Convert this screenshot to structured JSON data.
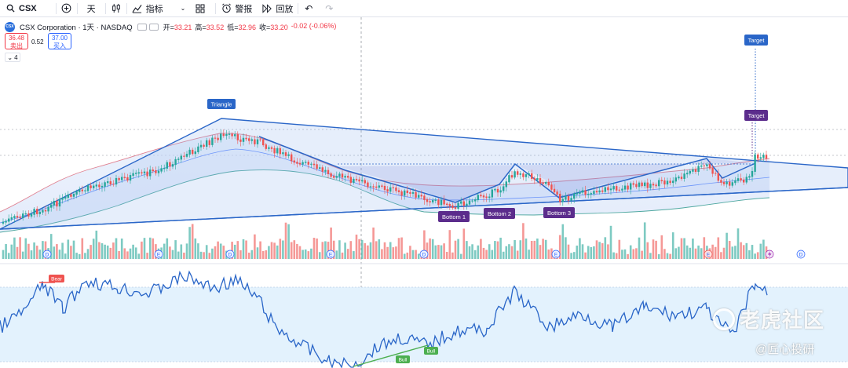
{
  "toolbar": {
    "symbol": "CSX",
    "interval": "天",
    "indicators_label": "指标",
    "alert_label": "警报",
    "replay_label": "回放"
  },
  "legend": {
    "title": "CSX Corporation · 1天 · NASDAQ",
    "open_key": "开=",
    "open": "33.21",
    "high_key": "高=",
    "high": "33.52",
    "low_key": "低=",
    "low": "32.96",
    "close_key": "收=",
    "close": "33.20",
    "change": "-0.02 (-0.06%)",
    "sell_price": "36.48",
    "sell_label": "卖出",
    "spread": "0.52",
    "buy_price": "37.00",
    "buy_label": "买入",
    "collapse_count": "4"
  },
  "annotations": {
    "triangle": "Triangle",
    "bottom1": "Bottom 1",
    "bottom2": "Bottom 2",
    "bottom3": "Bottom 3",
    "target": "Target",
    "bear": "Bear",
    "bull": "Bull"
  },
  "events": [
    "D",
    "E",
    "D",
    "E",
    "D",
    "E",
    "E",
    "D"
  ],
  "watermark": {
    "brand": "老虎社区",
    "author": "@匠心投研"
  },
  "colors": {
    "up": "#26a69a",
    "down": "#ef5350",
    "accent": "#2962ff",
    "label_blue": "#2a66c8",
    "label_purple": "#5b2c8c",
    "rsi_band": "#e3f2fd"
  }
}
